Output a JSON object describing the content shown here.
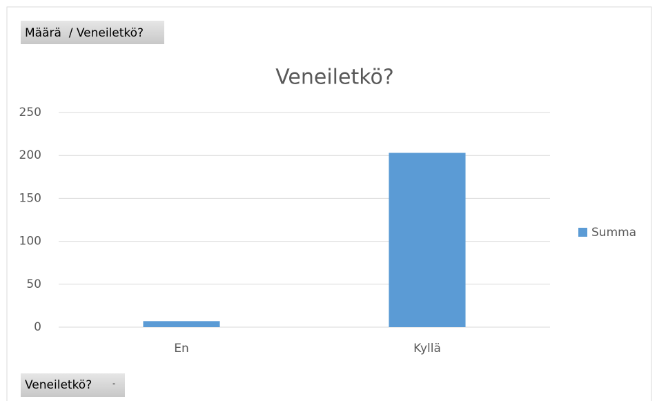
{
  "chart_data": {
    "type": "bar",
    "title": "Veneiletkö?",
    "value_field_button": "Määrä  / Veneiletkö?",
    "axis_field_button": "Veneiletkö?",
    "categories": [
      "En",
      "Kyllä"
    ],
    "series": [
      {
        "name": "Summa",
        "color": "#5b9bd5",
        "values": [
          7,
          203
        ]
      }
    ],
    "ylim": [
      0,
      250
    ],
    "yticks": [
      0,
      50,
      100,
      150,
      200,
      250
    ],
    "grid": true,
    "legend": "right"
  }
}
